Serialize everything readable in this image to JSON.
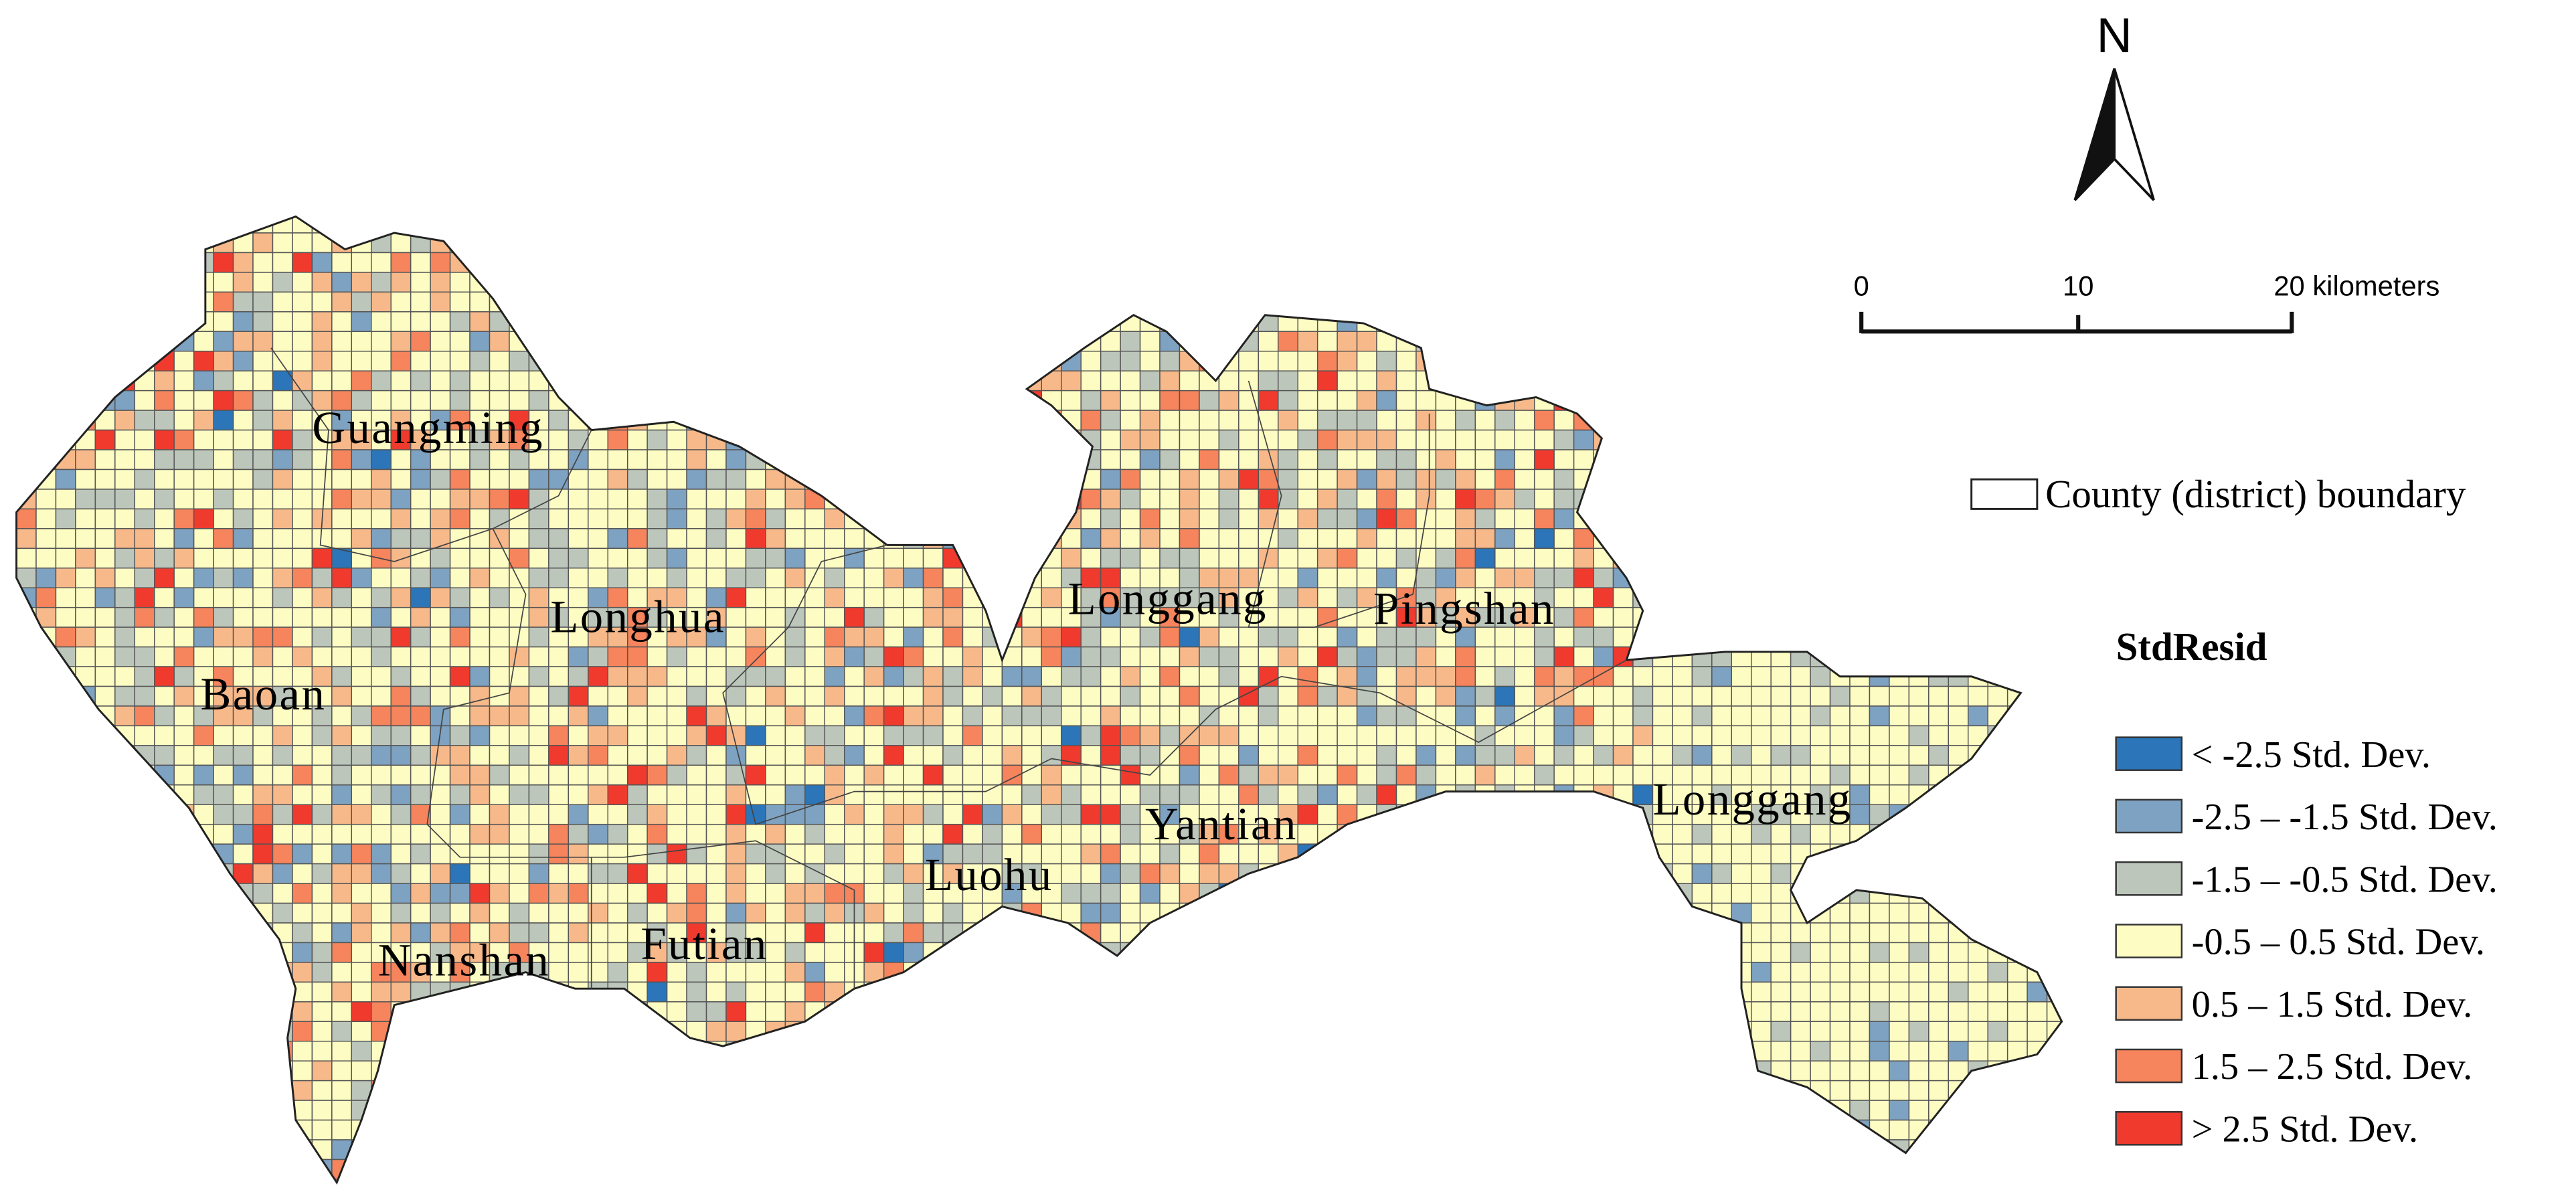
{
  "north": "N",
  "scale_bar": {
    "labels": [
      "0",
      "10",
      "20 kilometers"
    ]
  },
  "districts": [
    "Guangming",
    "Longhua",
    "Baoan",
    "Nanshan",
    "Futian",
    "Luohu",
    "Yantian",
    "Longgang",
    "Pingshan",
    "Longgang"
  ],
  "legend": {
    "boundary": "County (district) boundary",
    "title": "StdResid",
    "classes": [
      {
        "label": "< -2.5 Std. Dev.",
        "color": "#2b75b8"
      },
      {
        "label": "-2.5 – -1.5 Std. Dev.",
        "color": "#7ea2c1"
      },
      {
        "label": "-1.5 – -0.5 Std. Dev.",
        "color": "#bcc6bb"
      },
      {
        "label": "-0.5 – 0.5 Std. Dev.",
        "color": "#fcfcc3"
      },
      {
        "label": "0.5 – 1.5 Std. Dev.",
        "color": "#f8b98a"
      },
      {
        "label": "1.5 – 2.5 Std. Dev.",
        "color": "#f6845c"
      },
      {
        "label": "> 2.5 Std. Dev.",
        "color": "#f03a2e"
      }
    ]
  }
}
